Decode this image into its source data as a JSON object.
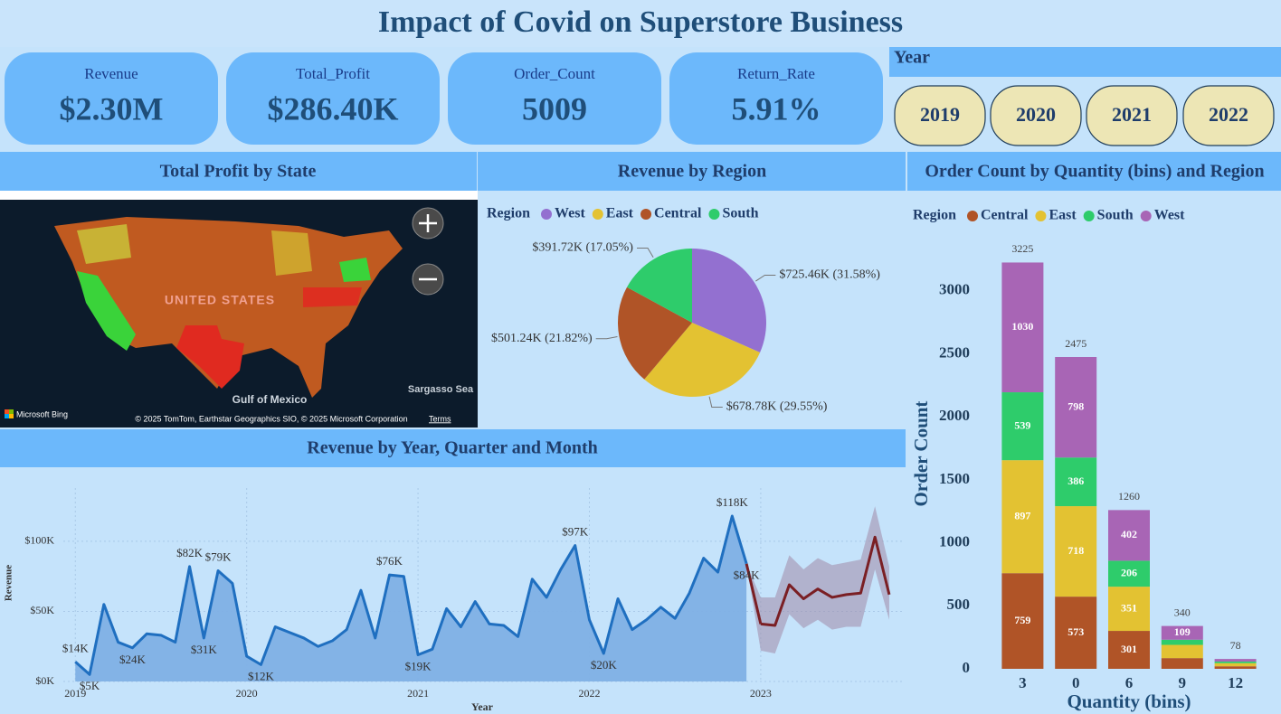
{
  "title": "Impact of Covid on Superstore Business",
  "kpis": [
    {
      "label": "Revenue",
      "value": "$2.30M"
    },
    {
      "label": "Total_Profit",
      "value": "$286.40K"
    },
    {
      "label": "Order_Count",
      "value": "5009"
    },
    {
      "label": "Return_Rate",
      "value": "5.91%"
    }
  ],
  "year_filter": {
    "title": "Year",
    "options": [
      "2019",
      "2020",
      "2021",
      "2022"
    ]
  },
  "map": {
    "title": "Total Profit by State",
    "labels": [
      "UNITED STATES",
      "Gulf of Mexico",
      "Sargasso Sea"
    ],
    "attribution": "Microsoft Bing",
    "copyright": "© 2025 TomTom, Earthstar Geographics SIO, © 2025 Microsoft Corporation",
    "terms": "Terms"
  },
  "chart_data": [
    {
      "type": "pie",
      "title": "Revenue by Region",
      "legend_title": "Region",
      "categories": [
        "West",
        "East",
        "Central",
        "South"
      ],
      "values": [
        725460,
        678780,
        501240,
        391720
      ],
      "value_labels": [
        "$725.46K (31.58%)",
        "$678.78K (29.55%)",
        "$501.24K (21.82%)",
        "$391.72K (17.05%)"
      ],
      "colors": [
        "#9370d0",
        "#e3c232",
        "#b05427",
        "#2ecc6b"
      ]
    },
    {
      "type": "line",
      "title": "Revenue by Year, Quarter and Month",
      "xlabel": "Year",
      "ylabel": "Revenue",
      "x": [
        2019,
        2019.0833,
        2019.1667,
        2019.25,
        2019.3333,
        2019.4167,
        2019.5,
        2019.5833,
        2019.6667,
        2019.75,
        2019.8333,
        2019.9167,
        2020,
        2020.0833,
        2020.1667,
        2020.25,
        2020.3333,
        2020.4167,
        2020.5,
        2020.5833,
        2020.6667,
        2020.75,
        2020.8333,
        2020.9167,
        2021,
        2021.0833,
        2021.1667,
        2021.25,
        2021.3333,
        2021.4167,
        2021.5,
        2021.5833,
        2021.6667,
        2021.75,
        2021.8333,
        2021.9167,
        2022,
        2022.0833,
        2022.1667,
        2022.25,
        2022.3333,
        2022.4167,
        2022.5,
        2022.5833,
        2022.6667,
        2022.75,
        2022.8333,
        2022.9167
      ],
      "series": [
        {
          "color": "#1f6fc0",
          "values": [
            14000,
            5000,
            55000,
            28000,
            24000,
            34000,
            33000,
            28000,
            82000,
            31000,
            79000,
            70000,
            18000,
            12000,
            39000,
            35000,
            31000,
            25000,
            29000,
            37000,
            65000,
            31000,
            76000,
            75000,
            19000,
            23000,
            52000,
            39000,
            57000,
            41000,
            40000,
            32000,
            73000,
            60000,
            80000,
            97000,
            44000,
            20000,
            59000,
            37000,
            44000,
            53000,
            45000,
            63000,
            88000,
            78000,
            118000,
            84000
          ],
          "value_labels": [
            "$14K",
            "$5K",
            null,
            null,
            "$24K",
            null,
            null,
            null,
            "$82K",
            "$31K",
            "$79K",
            null,
            null,
            "$12K",
            null,
            null,
            null,
            null,
            null,
            null,
            null,
            null,
            "$76K",
            null,
            "$19K",
            null,
            null,
            null,
            null,
            null,
            null,
            null,
            null,
            null,
            null,
            "$97K",
            null,
            "$20K",
            null,
            null,
            null,
            null,
            null,
            null,
            null,
            null,
            "$118K",
            "$84K"
          ]
        }
      ],
      "forecast": {
        "color": "#7a1f24",
        "band_color": "#a08aa8",
        "x": [
          2023,
          2023.0833,
          2023.1667,
          2023.25,
          2023.3333,
          2023.4167,
          2023.5,
          2023.5833,
          2023.6667,
          2023.75
        ],
        "values": [
          41000,
          40000,
          69000,
          59000,
          66000,
          60000,
          62000,
          63000,
          103000,
          62000
        ],
        "upper": [
          60000,
          60000,
          90000,
          80000,
          88000,
          83000,
          85000,
          87000,
          125000,
          82000
        ],
        "lower": [
          22000,
          20000,
          48000,
          38000,
          44000,
          37000,
          39000,
          39000,
          80000,
          44000
        ]
      },
      "xlim": [
        2018.93,
        2023.84
      ],
      "ylim": [
        0,
        138000
      ],
      "xticks": [
        2019,
        2020,
        2021,
        2022,
        2023
      ],
      "yticks": [
        {
          "value": 0,
          "label": "$0K"
        },
        {
          "value": 50000,
          "label": "$50K"
        },
        {
          "value": 100000,
          "label": "$100K"
        }
      ],
      "grid": true
    },
    {
      "type": "stacked_bar",
      "title": "Order Count by Quantity (bins) and Region",
      "legend_title": "Region",
      "xlabel": "Quantity (bins)",
      "ylabel": "Order Count",
      "categories": [
        "3",
        "0",
        "6",
        "9",
        "12"
      ],
      "series": [
        {
          "name": "Central",
          "color": "#b05427",
          "values": [
            759,
            573,
            301,
            85,
            20
          ],
          "value_labels": [
            "759",
            "573",
            "301",
            null,
            null
          ]
        },
        {
          "name": "East",
          "color": "#e3c232",
          "values": [
            897,
            718,
            351,
            105,
            25
          ],
          "value_labels": [
            "897",
            "718",
            "351",
            null,
            null
          ]
        },
        {
          "name": "South",
          "color": "#2ecc6b",
          "values": [
            539,
            386,
            206,
            41,
            13
          ],
          "value_labels": [
            "539",
            "386",
            "206",
            null,
            null
          ]
        },
        {
          "name": "West",
          "color": "#a865b5",
          "values": [
            1030,
            798,
            402,
            109,
            20
          ],
          "value_labels": [
            "1030",
            "798",
            "402",
            "109",
            null
          ]
        }
      ],
      "totals": [
        3225,
        2475,
        1260,
        340,
        78
      ],
      "ylim": [
        0,
        3300
      ],
      "yticks": [
        0,
        500,
        1000,
        1500,
        2000,
        2500,
        3000
      ]
    }
  ]
}
